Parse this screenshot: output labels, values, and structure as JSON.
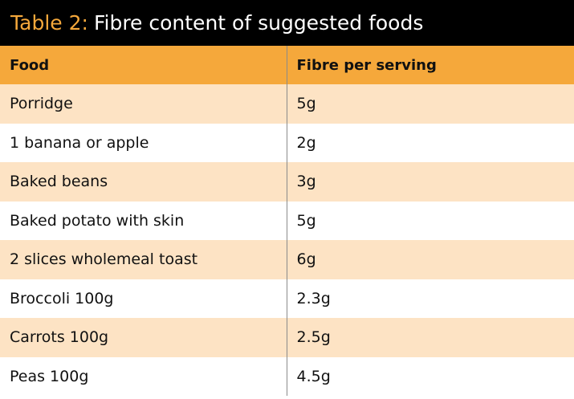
{
  "title": {
    "prefix": "Table 2:",
    "text": "Fibre content of suggested foods"
  },
  "table": {
    "headers": [
      "Food",
      "Fibre per serving"
    ],
    "rows": [
      [
        "Porridge",
        "5g"
      ],
      [
        "1 banana or apple",
        "2g"
      ],
      [
        "Baked beans",
        "3g"
      ],
      [
        "Baked potato with skin",
        "5g"
      ],
      [
        "2 slices wholemeal toast",
        "6g"
      ],
      [
        "Broccoli 100g",
        "2.3g"
      ],
      [
        "Carrots 100g",
        "2.5g"
      ],
      [
        "Peas 100g",
        "4.5g"
      ]
    ]
  },
  "colors": {
    "title_background": "#000000",
    "title_accent": "#f5a83b",
    "header_background": "#f5a83b",
    "odd_row_background": "#fde3c4",
    "even_row_background": "#ffffff"
  }
}
